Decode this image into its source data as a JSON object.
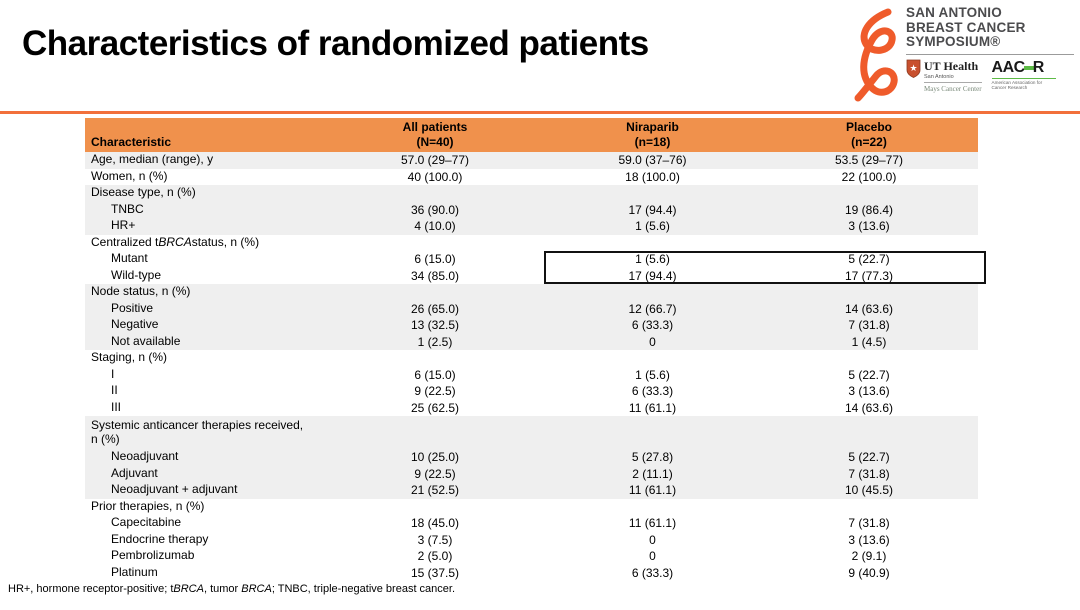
{
  "slide": {
    "title": "Characteristics of randomized patients"
  },
  "logo": {
    "symposium_line1": "SAN ANTONIO",
    "symposium_line2": "BREAST CANCER",
    "symposium_line3": "SYMPOSIUM®",
    "ut_health": {
      "name": "UT Health",
      "city": "San Antonio",
      "center": "Mays Cancer Center"
    },
    "aacr": {
      "letters_left": "AAC",
      "letters_right": "R",
      "subtext": "American Association for Cancer Research"
    }
  },
  "table": {
    "header": {
      "characteristic": "Characteristic",
      "columns": [
        {
          "line1": "All patients",
          "line2": "(N=40)"
        },
        {
          "line1": "Niraparib",
          "line2": "(n=18)"
        },
        {
          "line1": "Placebo",
          "line2": "(n=22)"
        }
      ]
    },
    "rows": [
      {
        "label": "Age, median (range), y",
        "indent": false,
        "twoline": false,
        "shade": "gray",
        "values": [
          "57.0 (29–77)",
          "59.0 (37–76)",
          "53.5 (29–77)"
        ]
      },
      {
        "label": "Women, n (%)",
        "indent": false,
        "twoline": false,
        "shade": "white",
        "values": [
          "40 (100.0)",
          "18 (100.0)",
          "22 (100.0)"
        ]
      },
      {
        "label": "Disease type, n (%)",
        "indent": false,
        "twoline": false,
        "shade": "gray",
        "values": [
          "",
          "",
          ""
        ]
      },
      {
        "label": "TNBC",
        "indent": true,
        "twoline": false,
        "shade": "gray",
        "values": [
          "36 (90.0)",
          "17 (94.4)",
          "19 (86.4)"
        ]
      },
      {
        "label": "HR+",
        "indent": true,
        "twoline": false,
        "shade": "gray",
        "values": [
          "4 (10.0)",
          "1 (5.6)",
          "3 (13.6)"
        ]
      },
      {
        "label": "Centralized tBRCA status, n (%)",
        "indent": false,
        "twoline": false,
        "shade": "white",
        "values": [
          "",
          "",
          ""
        ]
      },
      {
        "label": "Mutant",
        "indent": true,
        "twoline": false,
        "shade": "white",
        "values": [
          "6 (15.0)",
          "1 (5.6)",
          "5 (22.7)"
        ]
      },
      {
        "label": "Wild-type",
        "indent": true,
        "twoline": false,
        "shade": "white",
        "values": [
          "34 (85.0)",
          "17 (94.4)",
          "17 (77.3)"
        ]
      },
      {
        "label": "Node status, n (%)",
        "indent": false,
        "twoline": false,
        "shade": "gray",
        "values": [
          "",
          "",
          ""
        ]
      },
      {
        "label": "Positive",
        "indent": true,
        "twoline": false,
        "shade": "gray",
        "values": [
          "26 (65.0)",
          "12 (66.7)",
          "14 (63.6)"
        ]
      },
      {
        "label": "Negative",
        "indent": true,
        "twoline": false,
        "shade": "gray",
        "values": [
          "13 (32.5)",
          "6 (33.3)",
          "7 (31.8)"
        ]
      },
      {
        "label": "Not available",
        "indent": true,
        "twoline": false,
        "shade": "gray",
        "values": [
          "1 (2.5)",
          "0",
          "1 (4.5)"
        ]
      },
      {
        "label": "Staging, n (%)",
        "indent": false,
        "twoline": false,
        "shade": "white",
        "values": [
          "",
          "",
          ""
        ]
      },
      {
        "label": "I",
        "indent": true,
        "twoline": false,
        "shade": "white",
        "values": [
          "6 (15.0)",
          "1 (5.6)",
          "5 (22.7)"
        ]
      },
      {
        "label": "II",
        "indent": true,
        "twoline": false,
        "shade": "white",
        "values": [
          "9 (22.5)",
          "6 (33.3)",
          "3 (13.6)"
        ]
      },
      {
        "label": "III",
        "indent": true,
        "twoline": false,
        "shade": "white",
        "values": [
          "25 (62.5)",
          "11 (61.1)",
          "14 (63.6)"
        ]
      },
      {
        "label": "Systemic anticancer therapies received,\nn (%)",
        "indent": false,
        "twoline": true,
        "shade": "gray",
        "values": [
          "",
          "",
          ""
        ]
      },
      {
        "label": "Neoadjuvant",
        "indent": true,
        "twoline": false,
        "shade": "gray",
        "values": [
          "10 (25.0)",
          "5 (27.8)",
          "5 (22.7)"
        ]
      },
      {
        "label": "Adjuvant",
        "indent": true,
        "twoline": false,
        "shade": "gray",
        "values": [
          "9 (22.5)",
          "2 (11.1)",
          "7 (31.8)"
        ]
      },
      {
        "label": "Neoadjuvant + adjuvant",
        "indent": true,
        "twoline": false,
        "shade": "gray",
        "values": [
          "21 (52.5)",
          "11 (61.1)",
          "10 (45.5)"
        ]
      },
      {
        "label": "Prior therapies, n (%)",
        "indent": false,
        "twoline": false,
        "shade": "white",
        "values": [
          "",
          "",
          ""
        ]
      },
      {
        "label": "Capecitabine",
        "indent": true,
        "twoline": false,
        "shade": "white",
        "values": [
          "18 (45.0)",
          "11 (61.1)",
          "7 (31.8)"
        ]
      },
      {
        "label": "Endocrine therapy",
        "indent": true,
        "twoline": false,
        "shade": "white",
        "values": [
          "3 (7.5)",
          "0",
          "3 (13.6)"
        ]
      },
      {
        "label": "Pembrolizumab",
        "indent": true,
        "twoline": false,
        "shade": "white",
        "values": [
          "2 (5.0)",
          "0",
          "2 (9.1)"
        ]
      },
      {
        "label": "Platinum",
        "indent": true,
        "twoline": false,
        "shade": "white",
        "values": [
          "15 (37.5)",
          "6 (33.3)",
          "9 (40.9)"
        ]
      }
    ]
  },
  "footnote": "HR+, hormone receptor-positive; tBRCA, tumor BRCA; TNBC, triple-negative breast cancer.",
  "colors": {
    "table_header_orange": "#F0914C",
    "divider_orange": "#F2703B",
    "ribbon_orange": "#EF5B2B",
    "row_shade_gray": "#EFEFEF",
    "aacr_green": "#5DBB46",
    "shield_red": "#C8502E",
    "highlight_box_border": "#111111"
  }
}
